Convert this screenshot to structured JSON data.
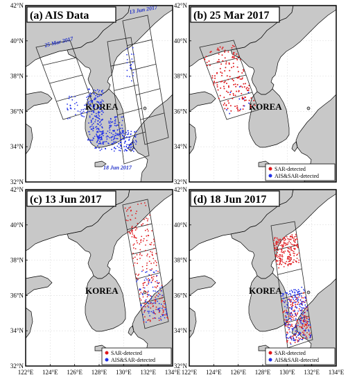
{
  "figure": {
    "panels": [
      {
        "id": "a",
        "title": "(a) AIS Data",
        "track_labels": [
          "25 Mar 2017",
          "13 Jun 2017",
          "18 Jun 2017"
        ],
        "country_label": "KOREA",
        "legend": null
      },
      {
        "id": "b",
        "title": "(b) 25 Mar 2017",
        "country_label": "KOREA",
        "legend": [
          "SAR-detected",
          "AIS&SAR-detected"
        ]
      },
      {
        "id": "c",
        "title": "(c) 13 Jun 2017",
        "country_label": "KOREA",
        "legend": [
          "SAR-detected",
          "AIS&SAR-detected"
        ]
      },
      {
        "id": "d",
        "title": "(d) 18 Jun 2017",
        "country_label": "KOREA",
        "legend": [
          "SAR-detected",
          "AIS&SAR-detected"
        ]
      }
    ],
    "lat_ticks": [
      "32°N",
      "34°N",
      "36°N",
      "38°N",
      "40°N",
      "42°N"
    ],
    "lon_ticks": [
      "122°E",
      "124°E",
      "126°E",
      "128°E",
      "130°E",
      "132°E",
      "134°E"
    ],
    "colors": {
      "land": "#c8c8c8",
      "sea": "#ffffff",
      "sar_detected": "#e0181c",
      "ais_sar_detected": "#2030e8",
      "ais_track_label": "#2030c8",
      "grid": "#d8d8d8"
    }
  }
}
